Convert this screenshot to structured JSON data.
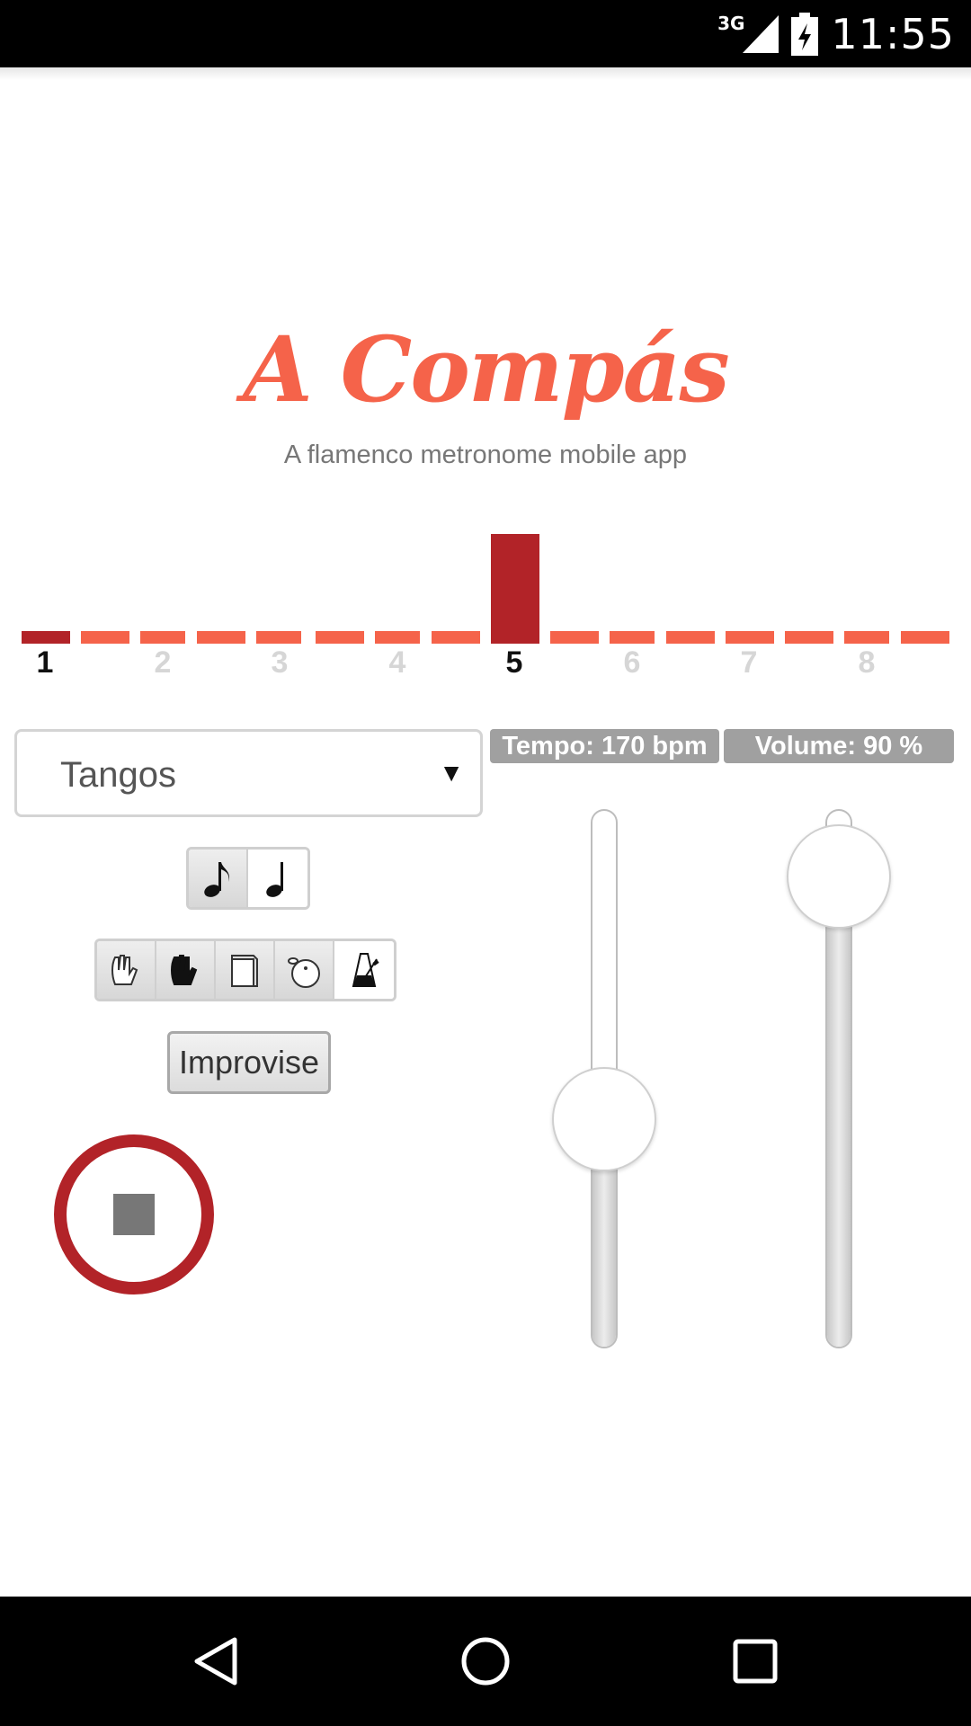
{
  "status_bar": {
    "network": "3G",
    "time": "11:55"
  },
  "app": {
    "title": "A Compás",
    "subtitle": "A flamenco metronome mobile app"
  },
  "beats": {
    "numbers": [
      "1",
      "2",
      "3",
      "4",
      "5",
      "6",
      "7",
      "8"
    ],
    "current": "5",
    "accent_color": "#b22328",
    "bar_color": "#f5634a"
  },
  "palo_select": {
    "value": "Tangos",
    "arrow": "▼"
  },
  "note_toggle": {
    "options": [
      "eighth-note-icon",
      "quarter-note-icon"
    ],
    "selected": "eighth-note-icon"
  },
  "sound_toggle": {
    "options": [
      "palmas-claras-icon",
      "palmas-sordas-icon",
      "cajon-icon",
      "udu-icon",
      "metronome-icon"
    ]
  },
  "improvise_label": "Improvise",
  "tempo": {
    "label": "Tempo: 170 bpm",
    "value": 170
  },
  "volume": {
    "label": "Volume: 90 %",
    "value": 90
  },
  "colors": {
    "title": "#f5634a",
    "stop": "#b22328"
  }
}
